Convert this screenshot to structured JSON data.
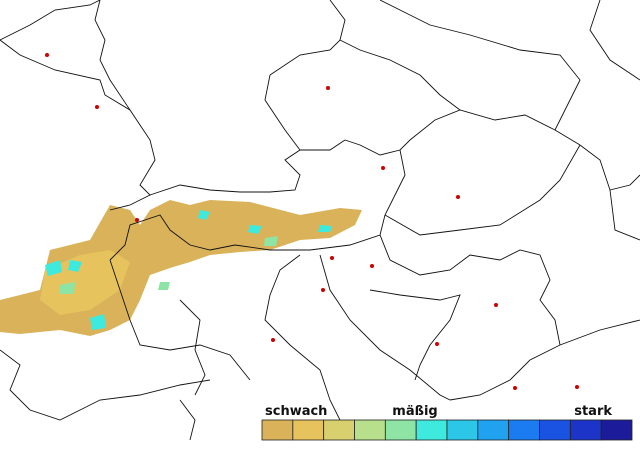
{
  "legend": {
    "labels": [
      "schwach",
      "mäßig",
      "stark"
    ],
    "colors": [
      "#d9b25a",
      "#e6c35c",
      "#d8cf6e",
      "#b8e08c",
      "#8ee4a4",
      "#3eeade",
      "#2cc6e8",
      "#20a2f0",
      "#1a7cf0",
      "#1a52e2",
      "#1c34c8",
      "#1c1c9a"
    ]
  }
}
